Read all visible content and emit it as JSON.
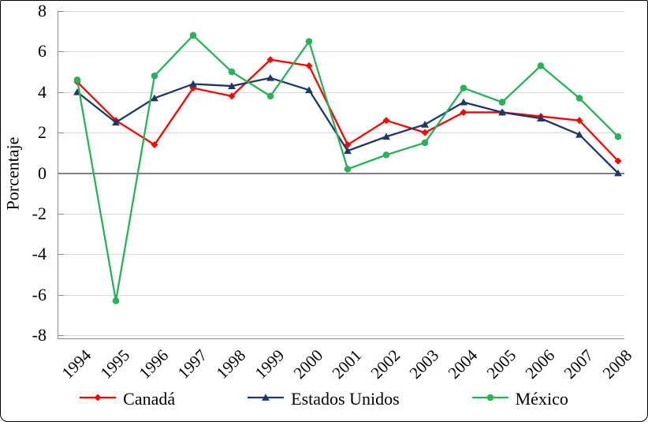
{
  "figure": {
    "title": "",
    "ylabel": "Porcentaje"
  },
  "chart_data": {
    "type": "line",
    "title": "",
    "xlabel": "",
    "ylabel": "Porcentaje",
    "ylim": [
      -8,
      8
    ],
    "ytick_step": 2,
    "grid": true,
    "legend_position": "bottom",
    "categories": [
      "1994",
      "1995",
      "1996",
      "1997",
      "1998",
      "1999",
      "2000",
      "2001",
      "2002",
      "2003",
      "2004",
      "2005",
      "2006",
      "2007",
      "2008"
    ],
    "series": [
      {
        "name": "Canadá",
        "color": "#ff0000",
        "marker": "diamond",
        "values": [
          4.5,
          2.6,
          1.4,
          4.2,
          3.8,
          5.6,
          5.3,
          1.4,
          2.6,
          2.0,
          3.0,
          3.0,
          2.8,
          2.6,
          0.6
        ]
      },
      {
        "name": "Estados Unidos",
        "color": "#1f3864",
        "marker": "triangle",
        "values": [
          4.0,
          2.5,
          3.7,
          4.4,
          4.3,
          4.7,
          4.1,
          1.1,
          1.8,
          2.4,
          3.5,
          3.0,
          2.7,
          1.9,
          0.0
        ]
      },
      {
        "name": "México",
        "color": "#2bb05c",
        "marker": "circle",
        "values": [
          4.6,
          -6.3,
          4.8,
          6.8,
          5.0,
          3.8,
          6.5,
          0.2,
          0.9,
          1.5,
          4.2,
          3.5,
          5.3,
          3.7,
          1.8
        ]
      }
    ],
    "colors": {
      "gridline": "#d9d9d9",
      "zero_line": "#808080",
      "axis": "#8c8c8c",
      "text": "#000000"
    }
  }
}
